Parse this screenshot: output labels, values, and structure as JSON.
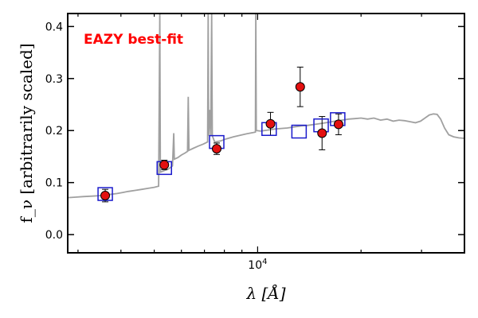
{
  "chart_data": {
    "type": "scatter",
    "annotation": "EAZY best-fit",
    "xlabel": "λ [Å]",
    "ylabel": "f_ν [arbitrarily scaled]",
    "x_scale": "log",
    "xlim": [
      2800,
      40000
    ],
    "ylim": [
      -0.035,
      0.425
    ],
    "yticks": [
      0.0,
      0.1,
      0.2,
      0.3,
      0.4
    ],
    "ytick_labels": [
      "0.0",
      "0.1",
      "0.2",
      "0.3",
      "0.4"
    ],
    "xticks": [
      10000
    ],
    "xtick_labels": [
      "10^4"
    ],
    "grid": false,
    "colors": {
      "template": "#a0a0a0",
      "observed_fill": "#e31010",
      "model_box": "#1a1acc",
      "annotation": "#ff0000"
    },
    "template": [
      [
        2800,
        0.071
      ],
      [
        2950,
        0.072
      ],
      [
        3100,
        0.073
      ],
      [
        3300,
        0.074
      ],
      [
        3500,
        0.075
      ],
      [
        3700,
        0.077
      ],
      [
        3900,
        0.079
      ],
      [
        4050,
        0.081
      ],
      [
        4200,
        0.083
      ],
      [
        4400,
        0.085
      ],
      [
        4600,
        0.087
      ],
      [
        4800,
        0.089
      ],
      [
        5000,
        0.091
      ],
      [
        5150,
        0.093
      ],
      [
        5190,
        0.425
      ],
      [
        5210,
        0.12
      ],
      [
        5350,
        0.123
      ],
      [
        5500,
        0.126
      ],
      [
        5650,
        0.132
      ],
      [
        5700,
        0.195
      ],
      [
        5720,
        0.145
      ],
      [
        5850,
        0.148
      ],
      [
        6000,
        0.153
      ],
      [
        6150,
        0.157
      ],
      [
        6250,
        0.16
      ],
      [
        6280,
        0.265
      ],
      [
        6310,
        0.162
      ],
      [
        6500,
        0.166
      ],
      [
        6700,
        0.17
      ],
      [
        6950,
        0.174
      ],
      [
        7150,
        0.178
      ],
      [
        7180,
        0.425
      ],
      [
        7200,
        0.19
      ],
      [
        7260,
        0.24
      ],
      [
        7300,
        0.19
      ],
      [
        7350,
        0.425
      ],
      [
        7380,
        0.19
      ],
      [
        7500,
        0.178
      ],
      [
        7800,
        0.18
      ],
      [
        8100,
        0.184
      ],
      [
        8500,
        0.188
      ],
      [
        8900,
        0.191
      ],
      [
        9300,
        0.194
      ],
      [
        9700,
        0.196
      ],
      [
        9850,
        0.197
      ],
      [
        9880,
        0.425
      ],
      [
        9910,
        0.2
      ],
      [
        10200,
        0.199
      ],
      [
        10700,
        0.201
      ],
      [
        11200,
        0.203
      ],
      [
        11700,
        0.204
      ],
      [
        12200,
        0.205
      ],
      [
        12800,
        0.207
      ],
      [
        13400,
        0.209
      ],
      [
        14000,
        0.21
      ],
      [
        14700,
        0.212
      ],
      [
        15400,
        0.214
      ],
      [
        16100,
        0.216
      ],
      [
        16800,
        0.218
      ],
      [
        17600,
        0.22
      ],
      [
        18400,
        0.222
      ],
      [
        19200,
        0.223
      ],
      [
        20000,
        0.224
      ],
      [
        20900,
        0.222
      ],
      [
        21800,
        0.224
      ],
      [
        22800,
        0.22
      ],
      [
        23800,
        0.222
      ],
      [
        24800,
        0.218
      ],
      [
        25800,
        0.22
      ],
      [
        26800,
        0.219
      ],
      [
        27800,
        0.217
      ],
      [
        28800,
        0.215
      ],
      [
        29800,
        0.218
      ],
      [
        30700,
        0.224
      ],
      [
        31600,
        0.23
      ],
      [
        32500,
        0.232
      ],
      [
        33300,
        0.231
      ],
      [
        34100,
        0.222
      ],
      [
        35000,
        0.205
      ],
      [
        36000,
        0.192
      ],
      [
        37200,
        0.188
      ],
      [
        38500,
        0.186
      ],
      [
        40000,
        0.185
      ]
    ],
    "model_photometry": [
      {
        "x": 3600,
        "y": 0.078
      },
      {
        "x": 5350,
        "y": 0.128
      },
      {
        "x": 7600,
        "y": 0.178
      },
      {
        "x": 10800,
        "y": 0.203
      },
      {
        "x": 13200,
        "y": 0.198
      },
      {
        "x": 15300,
        "y": 0.21
      },
      {
        "x": 17100,
        "y": 0.222
      }
    ],
    "observed_photometry": [
      {
        "x": 3600,
        "y": 0.075,
        "err": 0.012
      },
      {
        "x": 5350,
        "y": 0.134,
        "err": 0.009
      },
      {
        "x": 7600,
        "y": 0.165,
        "err": 0.011
      },
      {
        "x": 10900,
        "y": 0.213,
        "err": 0.022
      },
      {
        "x": 13300,
        "y": 0.284,
        "err": 0.038
      },
      {
        "x": 15400,
        "y": 0.195,
        "err": 0.032
      },
      {
        "x": 17200,
        "y": 0.212,
        "err": 0.02
      }
    ]
  }
}
